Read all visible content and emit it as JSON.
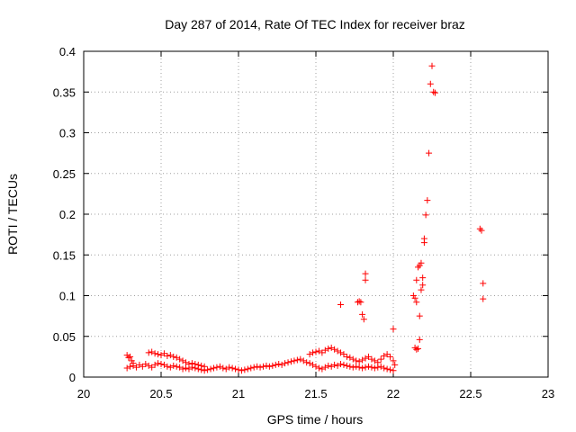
{
  "chart_data": {
    "type": "scatter",
    "title": "Day 287 of 2014, Rate Of TEC Index for receiver braz",
    "xlabel": "GPS time / hours",
    "ylabel": "ROTI / TECUs",
    "xlim": [
      20,
      23
    ],
    "ylim": [
      0,
      0.4
    ],
    "xticks": [
      20,
      20.5,
      21,
      21.5,
      22,
      22.5,
      23
    ],
    "xtick_labels": [
      "20",
      "20.5",
      "21",
      "21.5",
      "22",
      "22.5",
      "23"
    ],
    "yticks": [
      0,
      0.05,
      0.1,
      0.15,
      0.2,
      0.25,
      0.3,
      0.35,
      0.4
    ],
    "ytick_labels": [
      "0",
      "0.05",
      "0.1",
      "0.15",
      "0.2",
      "0.25",
      "0.3",
      "0.35",
      "0.4"
    ],
    "grid": true,
    "marker": "+",
    "color": "#ff0000",
    "series": [
      {
        "name": "ROTI",
        "points": [
          [
            20.28,
            0.027
          ],
          [
            20.29,
            0.024
          ],
          [
            20.3,
            0.025
          ],
          [
            20.31,
            0.02
          ],
          [
            20.32,
            0.017
          ],
          [
            20.28,
            0.011
          ],
          [
            20.3,
            0.013
          ],
          [
            20.32,
            0.014
          ],
          [
            20.34,
            0.012
          ],
          [
            20.36,
            0.015
          ],
          [
            20.38,
            0.013
          ],
          [
            20.4,
            0.016
          ],
          [
            20.42,
            0.014
          ],
          [
            20.44,
            0.012
          ],
          [
            20.46,
            0.015
          ],
          [
            20.48,
            0.017
          ],
          [
            20.5,
            0.016
          ],
          [
            20.52,
            0.015
          ],
          [
            20.54,
            0.013
          ],
          [
            20.56,
            0.012
          ],
          [
            20.58,
            0.014
          ],
          [
            20.6,
            0.013
          ],
          [
            20.62,
            0.012
          ],
          [
            20.64,
            0.01
          ],
          [
            20.66,
            0.011
          ],
          [
            20.68,
            0.01
          ],
          [
            20.7,
            0.012
          ],
          [
            20.72,
            0.011
          ],
          [
            20.74,
            0.01
          ],
          [
            20.76,
            0.009
          ],
          [
            20.78,
            0.008
          ],
          [
            20.8,
            0.009
          ],
          [
            20.82,
            0.01
          ],
          [
            20.84,
            0.011
          ],
          [
            20.86,
            0.012
          ],
          [
            20.88,
            0.013
          ],
          [
            20.9,
            0.011
          ],
          [
            20.92,
            0.01
          ],
          [
            20.94,
            0.012
          ],
          [
            20.96,
            0.011
          ],
          [
            20.98,
            0.01
          ],
          [
            21.0,
            0.009
          ],
          [
            21.02,
            0.008
          ],
          [
            21.04,
            0.009
          ],
          [
            21.06,
            0.01
          ],
          [
            21.08,
            0.011
          ],
          [
            21.1,
            0.012
          ],
          [
            21.12,
            0.013
          ],
          [
            21.14,
            0.012
          ],
          [
            21.16,
            0.013
          ],
          [
            21.18,
            0.014
          ],
          [
            21.2,
            0.013
          ],
          [
            21.22,
            0.014
          ],
          [
            21.24,
            0.015
          ],
          [
            21.26,
            0.016
          ],
          [
            21.28,
            0.015
          ],
          [
            21.3,
            0.017
          ],
          [
            21.32,
            0.018
          ],
          [
            21.34,
            0.019
          ],
          [
            21.36,
            0.02
          ],
          [
            21.38,
            0.021
          ],
          [
            21.4,
            0.022
          ],
          [
            21.42,
            0.02
          ],
          [
            21.44,
            0.018
          ],
          [
            21.46,
            0.017
          ],
          [
            21.48,
            0.015
          ],
          [
            21.5,
            0.013
          ],
          [
            21.52,
            0.011
          ],
          [
            21.54,
            0.01
          ],
          [
            21.56,
            0.012
          ],
          [
            21.58,
            0.014
          ],
          [
            21.6,
            0.013
          ],
          [
            21.62,
            0.015
          ],
          [
            21.64,
            0.014
          ],
          [
            21.66,
            0.016
          ],
          [
            21.68,
            0.015
          ],
          [
            21.7,
            0.014
          ],
          [
            21.72,
            0.013
          ],
          [
            21.74,
            0.012
          ],
          [
            21.76,
            0.013
          ],
          [
            21.78,
            0.012
          ],
          [
            21.8,
            0.011
          ],
          [
            21.82,
            0.012
          ],
          [
            21.84,
            0.013
          ],
          [
            21.86,
            0.012
          ],
          [
            21.88,
            0.011
          ],
          [
            21.9,
            0.012
          ],
          [
            21.92,
            0.013
          ],
          [
            21.94,
            0.011
          ],
          [
            21.96,
            0.01
          ],
          [
            21.98,
            0.009
          ],
          [
            22.0,
            0.008
          ],
          [
            20.42,
            0.03
          ],
          [
            20.44,
            0.031
          ],
          [
            20.46,
            0.029
          ],
          [
            20.48,
            0.028
          ],
          [
            20.5,
            0.027
          ],
          [
            20.52,
            0.029
          ],
          [
            20.54,
            0.026
          ],
          [
            20.56,
            0.027
          ],
          [
            20.58,
            0.025
          ],
          [
            20.6,
            0.024
          ],
          [
            20.62,
            0.022
          ],
          [
            20.64,
            0.02
          ],
          [
            20.66,
            0.018
          ],
          [
            20.68,
            0.016
          ],
          [
            20.7,
            0.017
          ],
          [
            20.72,
            0.016
          ],
          [
            20.74,
            0.015
          ],
          [
            20.76,
            0.014
          ],
          [
            20.78,
            0.013
          ],
          [
            21.46,
            0.028
          ],
          [
            21.48,
            0.03
          ],
          [
            21.5,
            0.031
          ],
          [
            21.52,
            0.032
          ],
          [
            21.54,
            0.03
          ],
          [
            21.56,
            0.033
          ],
          [
            21.58,
            0.035
          ],
          [
            21.6,
            0.036
          ],
          [
            21.62,
            0.034
          ],
          [
            21.64,
            0.032
          ],
          [
            21.66,
            0.03
          ],
          [
            21.68,
            0.028
          ],
          [
            21.7,
            0.025
          ],
          [
            21.72,
            0.024
          ],
          [
            21.74,
            0.022
          ],
          [
            21.76,
            0.02
          ],
          [
            21.78,
            0.019
          ],
          [
            21.8,
            0.021
          ],
          [
            21.82,
            0.023
          ],
          [
            21.84,
            0.025
          ],
          [
            21.86,
            0.022
          ],
          [
            21.88,
            0.02
          ],
          [
            21.9,
            0.018
          ],
          [
            21.92,
            0.022
          ],
          [
            21.94,
            0.026
          ],
          [
            21.96,
            0.028
          ],
          [
            21.98,
            0.025
          ],
          [
            22.0,
            0.02
          ],
          [
            22.01,
            0.015
          ],
          [
            21.66,
            0.089
          ],
          [
            21.77,
            0.092
          ],
          [
            21.78,
            0.093
          ],
          [
            21.79,
            0.092
          ],
          [
            21.8,
            0.077
          ],
          [
            21.81,
            0.071
          ],
          [
            21.82,
            0.127
          ],
          [
            21.82,
            0.119
          ],
          [
            22.0,
            0.059
          ],
          [
            22.13,
            0.1
          ],
          [
            22.14,
            0.097
          ],
          [
            22.15,
            0.092
          ],
          [
            22.15,
            0.119
          ],
          [
            22.16,
            0.135
          ],
          [
            22.17,
            0.137
          ],
          [
            22.17,
            0.075
          ],
          [
            22.18,
            0.14
          ],
          [
            22.18,
            0.107
          ],
          [
            22.19,
            0.113
          ],
          [
            22.19,
            0.122
          ],
          [
            22.2,
            0.165
          ],
          [
            22.2,
            0.17
          ],
          [
            22.21,
            0.199
          ],
          [
            22.22,
            0.217
          ],
          [
            22.23,
            0.275
          ],
          [
            22.24,
            0.36
          ],
          [
            22.25,
            0.382
          ],
          [
            22.26,
            0.35
          ],
          [
            22.27,
            0.349
          ],
          [
            22.14,
            0.036
          ],
          [
            22.15,
            0.034
          ],
          [
            22.16,
            0.035
          ],
          [
            22.17,
            0.046
          ],
          [
            22.56,
            0.182
          ],
          [
            22.57,
            0.18
          ],
          [
            22.58,
            0.115
          ],
          [
            22.58,
            0.096
          ]
        ]
      }
    ]
  }
}
